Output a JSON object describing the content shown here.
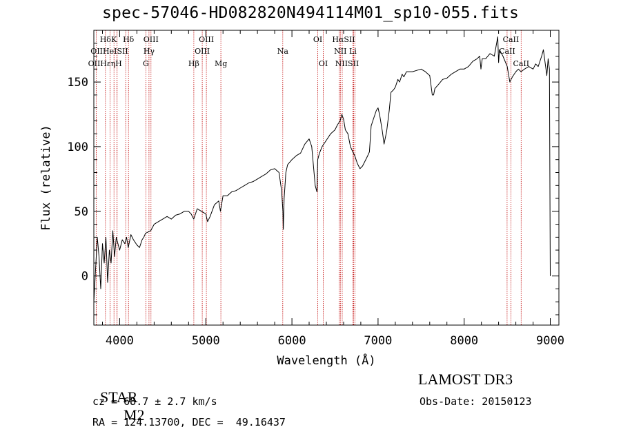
{
  "chart_data": {
    "type": "line",
    "title": "spec-57046-HD082820N494114M01_sp10-055.fits",
    "xlabel": "Wavelength (Å)",
    "ylabel": "Flux (relative)",
    "xlim": [
      3700,
      9100
    ],
    "ylim": [
      -38,
      190
    ],
    "xticks": [
      4000,
      5000,
      6000,
      7000,
      8000,
      9000
    ],
    "yticks": [
      0,
      50,
      100,
      150
    ],
    "grid": false,
    "series": [
      {
        "name": "spectrum",
        "x": [
          3700,
          3720,
          3740,
          3760,
          3780,
          3800,
          3820,
          3840,
          3860,
          3880,
          3900,
          3920,
          3940,
          3960,
          3980,
          4000,
          4030,
          4060,
          4080,
          4100,
          4130,
          4160,
          4200,
          4230,
          4260,
          4280,
          4300,
          4330,
          4360,
          4400,
          4450,
          4500,
          4550,
          4600,
          4650,
          4700,
          4750,
          4800,
          4830,
          4860,
          4880,
          4900,
          4950,
          5000,
          5020,
          5050,
          5100,
          5150,
          5170,
          5200,
          5250,
          5300,
          5350,
          5400,
          5450,
          5500,
          5550,
          5600,
          5650,
          5700,
          5750,
          5800,
          5850,
          5880,
          5895,
          5900,
          5910,
          5930,
          5950,
          6000,
          6050,
          6100,
          6150,
          6200,
          6230,
          6270,
          6290,
          6300,
          6320,
          6350,
          6400,
          6450,
          6500,
          6530,
          6560,
          6580,
          6600,
          6620,
          6650,
          6680,
          6700,
          6730,
          6760,
          6790,
          6820,
          6850,
          6880,
          6900,
          6920,
          6950,
          6980,
          7000,
          7020,
          7050,
          7070,
          7100,
          7130,
          7150,
          7180,
          7200,
          7230,
          7250,
          7280,
          7300,
          7330,
          7360,
          7400,
          7450,
          7500,
          7550,
          7600,
          7630,
          7645,
          7660,
          7700,
          7750,
          7800,
          7850,
          7900,
          7950,
          8000,
          8050,
          8100,
          8150,
          8180,
          8195,
          8210,
          8250,
          8300,
          8350,
          8390,
          8400,
          8410,
          8450,
          8500,
          8530,
          8545,
          8560,
          8600,
          8630,
          8660,
          8700,
          8750,
          8800,
          8830,
          8860,
          8900,
          8920,
          8940,
          8960,
          8975,
          8990,
          9000
        ],
        "values": [
          -20,
          5,
          30,
          15,
          -10,
          25,
          10,
          30,
          -5,
          20,
          10,
          35,
          15,
          30,
          25,
          20,
          28,
          25,
          30,
          22,
          32,
          28,
          24,
          22,
          28,
          30,
          33,
          34,
          35,
          40,
          42,
          44,
          46,
          44,
          47,
          48,
          50,
          50,
          48,
          44,
          48,
          52,
          50,
          48,
          42,
          46,
          55,
          58,
          50,
          62,
          62,
          65,
          66,
          68,
          70,
          72,
          73,
          75,
          77,
          79,
          82,
          83,
          80,
          66,
          50,
          36,
          60,
          80,
          86,
          90,
          93,
          95,
          102,
          106,
          100,
          70,
          65,
          90,
          95,
          100,
          105,
          110,
          113,
          117,
          120,
          125,
          121,
          113,
          110,
          100,
          97,
          93,
          87,
          83,
          85,
          89,
          93,
          96,
          116,
          122,
          128,
          130,
          124,
          112,
          102,
          112,
          128,
          142,
          144,
          146,
          152,
          150,
          156,
          154,
          158,
          158,
          158,
          159,
          160,
          158,
          155,
          140,
          140,
          145,
          148,
          152,
          153,
          156,
          158,
          160,
          160,
          162,
          166,
          168,
          170,
          160,
          168,
          168,
          172,
          170,
          185,
          165,
          175,
          170,
          162,
          150,
          152,
          154,
          158,
          160,
          158,
          160,
          162,
          160,
          164,
          162,
          170,
          175,
          165,
          155,
          168,
          160,
          0
        ]
      }
    ],
    "lines": [
      {
        "name": "Hδ",
        "x": 3835
      },
      {
        "name": "OII",
        "x": 3727
      },
      {
        "name": "Hε",
        "x": 3889
      },
      {
        "name": "K",
        "x": 3934
      },
      {
        "name": "He",
        "x": 3970
      },
      {
        "name": "H",
        "x": 3969
      },
      {
        "name": "Hδ",
        "x": 4102
      },
      {
        "name": "SII",
        "x": 4070
      },
      {
        "name": "OIII",
        "x": 4363
      },
      {
        "name": "Hγ",
        "x": 4340
      },
      {
        "name": "G",
        "x": 4304
      },
      {
        "name": "Hβ",
        "x": 4861
      },
      {
        "name": "OIII",
        "x": 4959
      },
      {
        "name": "OIII",
        "x": 5007
      },
      {
        "name": "Mg",
        "x": 5175
      },
      {
        "name": "Na",
        "x": 5894
      },
      {
        "name": "OI",
        "x": 6300
      },
      {
        "name": "OI",
        "x": 6364
      },
      {
        "name": "Hα",
        "x": 6563
      },
      {
        "name": "NII",
        "x": 6548
      },
      {
        "name": "NII",
        "x": 6584
      },
      {
        "name": "SII",
        "x": 6716
      },
      {
        "name": "Li",
        "x": 6708
      },
      {
        "name": "SII",
        "x": 6731
      },
      {
        "name": "CaII",
        "x": 8498
      },
      {
        "name": "CaII",
        "x": 8542
      },
      {
        "name": "CaII",
        "x": 8662
      }
    ],
    "line_labels": [
      {
        "text": "Hδ",
        "row": 1,
        "x": 3835
      },
      {
        "text": "K",
        "row": 1,
        "x": 3934
      },
      {
        "text": "Hδ",
        "row": 1,
        "x": 4102
      },
      {
        "text": "OIII",
        "row": 1,
        "x": 4363
      },
      {
        "text": "OIII",
        "row": 1,
        "x": 5007
      },
      {
        "text": "OI",
        "row": 1,
        "x": 6300
      },
      {
        "text": "HαSII",
        "row": 1,
        "x": 6600
      },
      {
        "text": "CaII",
        "row": 1,
        "x": 8542
      },
      {
        "text": "OIIHeISII",
        "row": 2,
        "x": 3880
      },
      {
        "text": "Hγ",
        "row": 2,
        "x": 4340
      },
      {
        "text": "OIII",
        "row": 2,
        "x": 4959
      },
      {
        "text": "Na",
        "row": 2,
        "x": 5894
      },
      {
        "text": "NII Li",
        "row": 2,
        "x": 6620
      },
      {
        "text": "CaII",
        "row": 2,
        "x": 8498
      },
      {
        "text": "OIIHεηH",
        "row": 3,
        "x": 3830
      },
      {
        "text": "G",
        "row": 3,
        "x": 4304
      },
      {
        "text": "Hβ",
        "row": 3,
        "x": 4861
      },
      {
        "text": "Mg",
        "row": 3,
        "x": 5175
      },
      {
        "text": "OI",
        "row": 3,
        "x": 6364
      },
      {
        "text": "NIISII",
        "row": 3,
        "x": 6640
      },
      {
        "text": "CaII",
        "row": 3,
        "x": 8662
      }
    ]
  },
  "info": {
    "class": "STAR",
    "subclass": "M2",
    "survey": "LAMOST DR3",
    "cz": "cz = 68.7 ± 2.7 km/s",
    "obs_date": "Obs-Date: 20150123",
    "coords": "RA = 124.13700, DEC =  49.16437"
  },
  "colors": {
    "line": "#c00000",
    "spectrum": "#000000"
  }
}
